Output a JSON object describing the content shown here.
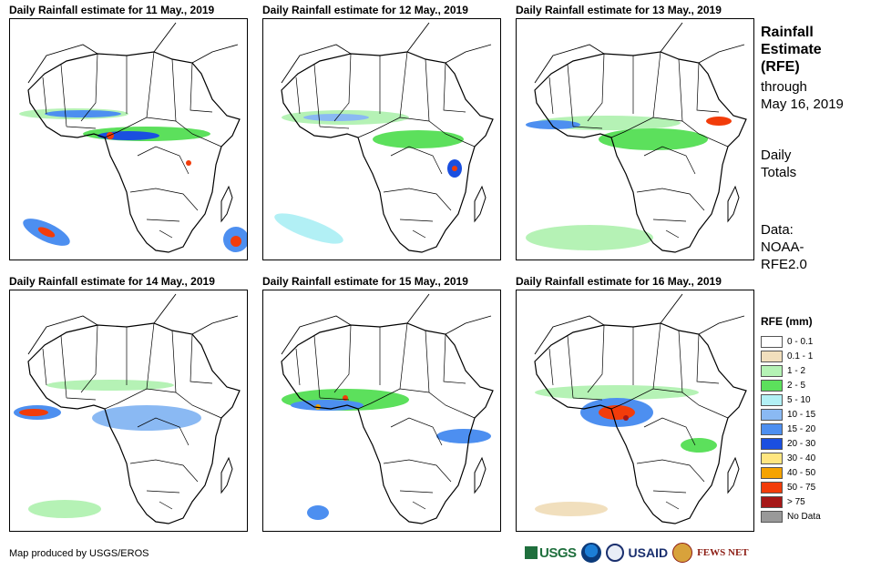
{
  "panels": [
    {
      "title": "Daily Rainfall estimate for 11 May., 2019"
    },
    {
      "title": "Daily Rainfall estimate for 12 May., 2019"
    },
    {
      "title": "Daily Rainfall estimate for 13 May., 2019"
    },
    {
      "title": "Daily Rainfall estimate for 14 May., 2019"
    },
    {
      "title": "Daily Rainfall estimate for 15 May., 2019"
    },
    {
      "title": "Daily Rainfall estimate for 16 May., 2019"
    }
  ],
  "sidebar": {
    "title_lines": [
      "Rainfall",
      "Estimate",
      "(RFE)"
    ],
    "through_lines": [
      "through",
      "May 16, 2019"
    ],
    "totals_lines": [
      "Daily",
      "Totals"
    ],
    "data_lines": [
      "Data:",
      "NOAA-",
      "RFE2.0"
    ]
  },
  "legend": {
    "title": "RFE (mm)",
    "items": [
      {
        "label": "0 - 0.1",
        "color": "#ffffff"
      },
      {
        "label": "0.1 - 1",
        "color": "#f1dfbd"
      },
      {
        "label": "1 - 2",
        "color": "#b5f2b5"
      },
      {
        "label": "2 - 5",
        "color": "#5ce05c"
      },
      {
        "label": "5 - 10",
        "color": "#b2f0f5"
      },
      {
        "label": "10 - 15",
        "color": "#8ab9f3"
      },
      {
        "label": "15 - 20",
        "color": "#4d8ff0"
      },
      {
        "label": "20 - 30",
        "color": "#1a4fe0"
      },
      {
        "label": "30 - 40",
        "color": "#ffe680"
      },
      {
        "label": "40 - 50",
        "color": "#f5a300"
      },
      {
        "label": "50 - 75",
        "color": "#f23c0a"
      },
      {
        "label": "> 75",
        "color": "#a61717"
      },
      {
        "label": "No Data",
        "color": "#999999"
      }
    ]
  },
  "credit": "Map produced by USGS/EROS",
  "logos": {
    "usgs": "USGS",
    "usaid": "USAID",
    "fews": "FEWS NET"
  }
}
